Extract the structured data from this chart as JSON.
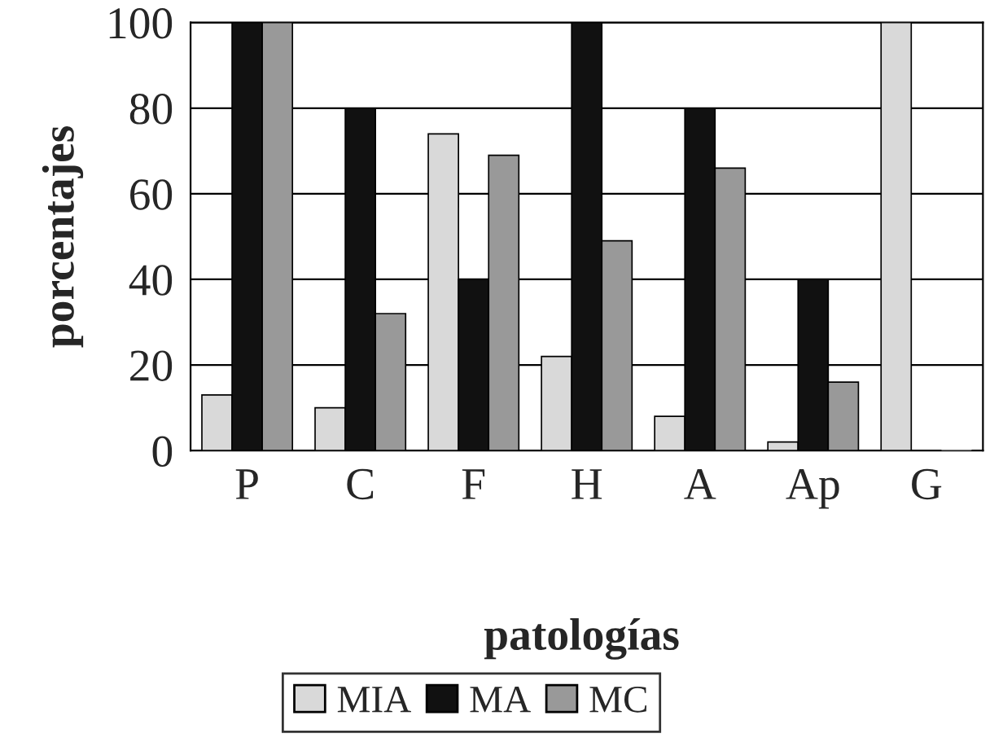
{
  "chart_data": {
    "type": "bar",
    "xlabel": "patologías",
    "ylabel": "porcentajes",
    "categories": [
      "P",
      "C",
      "F",
      "H",
      "A",
      "Ap",
      "G"
    ],
    "series": [
      {
        "name": "MIA",
        "color": "#d9d9d9",
        "values": [
          13,
          10,
          74,
          22,
          8,
          2,
          100
        ]
      },
      {
        "name": "MA",
        "color": "#111111",
        "values": [
          100,
          80,
          40,
          100,
          80,
          40,
          0
        ]
      },
      {
        "name": "MC",
        "color": "#999999",
        "values": [
          100,
          32,
          69,
          49,
          66,
          16,
          0
        ]
      }
    ],
    "ylim": [
      0,
      100
    ],
    "yticks": [
      0,
      20,
      40,
      60,
      80,
      100
    ],
    "grid": "y",
    "legend": "bottom"
  }
}
